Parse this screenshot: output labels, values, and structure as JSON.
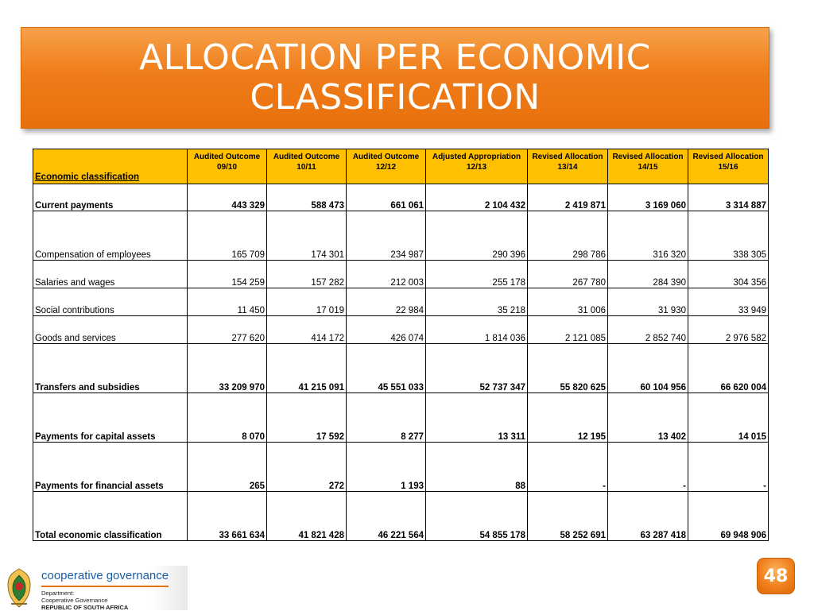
{
  "title": {
    "line1": "ALLOCATION PER ECONOMIC",
    "line2": "CLASSIFICATION"
  },
  "table": {
    "headers": [
      "Economic classification",
      "Audited Outcome 09/10",
      "Audited Outcome 10/11",
      "Audited Outcome 12/12",
      "Adjusted Appropriation 12/13",
      "Revised Allocation 13/14",
      "Revised Allocation 14/15",
      "Revised Allocation 15/16"
    ],
    "rows": [
      {
        "label": "Current payments",
        "bold": true,
        "values": [
          "443 329",
          "588 473",
          "661 061",
          "2 104 432",
          "2 419 871",
          "3 169 060",
          "3 314 887"
        ]
      },
      {
        "label": "Compensation of employees",
        "bold": false,
        "values": [
          "165 709",
          "174 301",
          "234 987",
          "290 396",
          "298 786",
          "316 320",
          "338 305"
        ]
      },
      {
        "label": "Salaries and wages",
        "bold": false,
        "values": [
          "154 259",
          "157 282",
          "212 003",
          "255 178",
          "267 780",
          "284 390",
          "304 356"
        ]
      },
      {
        "label": "Social contributions",
        "bold": false,
        "values": [
          "11 450",
          "17 019",
          "22 984",
          "35 218",
          "31 006",
          "31 930",
          "33 949"
        ]
      },
      {
        "label": "Goods and services",
        "bold": false,
        "values": [
          "277 620",
          "414 172",
          "426 074",
          "1 814 036",
          "2 121 085",
          "2 852 740",
          "2 976 582"
        ]
      },
      {
        "label": "Transfers and subsidies",
        "bold": true,
        "values": [
          "33 209 970",
          "41 215 091",
          "45 551 033",
          "52 737 347",
          "55 820 625",
          "60 104 956",
          "66 620 004"
        ]
      },
      {
        "label": "Payments for capital assets",
        "bold": true,
        "values": [
          "8 070",
          "17 592",
          "8 277",
          "13 311",
          "12 195",
          "13 402",
          "14 015"
        ]
      },
      {
        "label": "Payments for financial assets",
        "bold": true,
        "values": [
          "265",
          "272",
          "1 193",
          "88",
          "-",
          "-",
          "-"
        ]
      },
      {
        "label": "Total economic classification",
        "bold": true,
        "values": [
          "33 661 634",
          "41 821 428",
          "46 221 564",
          "54 855 178",
          "58 252 691",
          "63 287 418",
          "69 948 906"
        ]
      }
    ]
  },
  "footer": {
    "logo_title": "cooperative governance",
    "logo_lines": [
      "Department:",
      "Cooperative Governance",
      "REPUBLIC OF SOUTH AFRICA"
    ],
    "page_number": "48"
  },
  "colors": {
    "accent": "#ef7d1a",
    "header_fill": "#ffc000",
    "logo_blue": "#1a5ea8"
  }
}
